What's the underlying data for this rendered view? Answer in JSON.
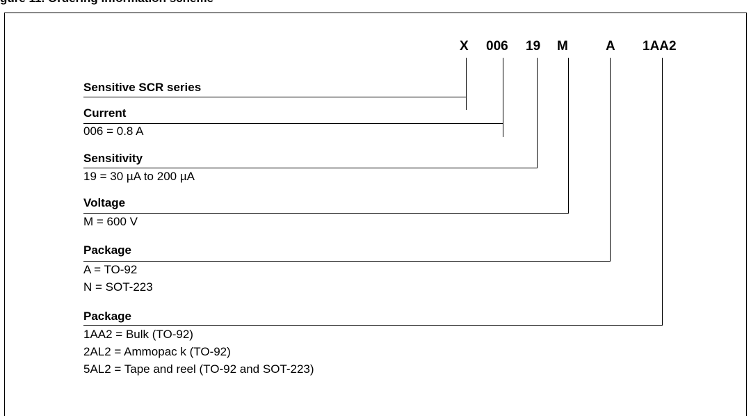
{
  "header": {
    "title_fragment": "gure 11. Ordering information scheme"
  },
  "code": {
    "parts": [
      "X",
      "006",
      "19",
      "M",
      "A",
      "1AA2"
    ]
  },
  "sections": [
    {
      "title": "Sensitive SCR series",
      "values": []
    },
    {
      "title": "Current",
      "values": [
        "006 = 0.8 A"
      ]
    },
    {
      "title": "Sensitivity",
      "values": [
        "19 = 30 µA to 200 µA"
      ]
    },
    {
      "title": "Voltage",
      "values": [
        "M = 600 V"
      ]
    },
    {
      "title": "Package",
      "values": [
        "A = TO-92",
        "N = SOT-223"
      ]
    },
    {
      "title": "Package",
      "values": [
        "1AA2 = Bulk (TO-92)",
        "2AL2 = Ammopac k (TO-92)",
        "5AL2 = Tape and reel (TO-92 and SOT-223)"
      ]
    }
  ]
}
